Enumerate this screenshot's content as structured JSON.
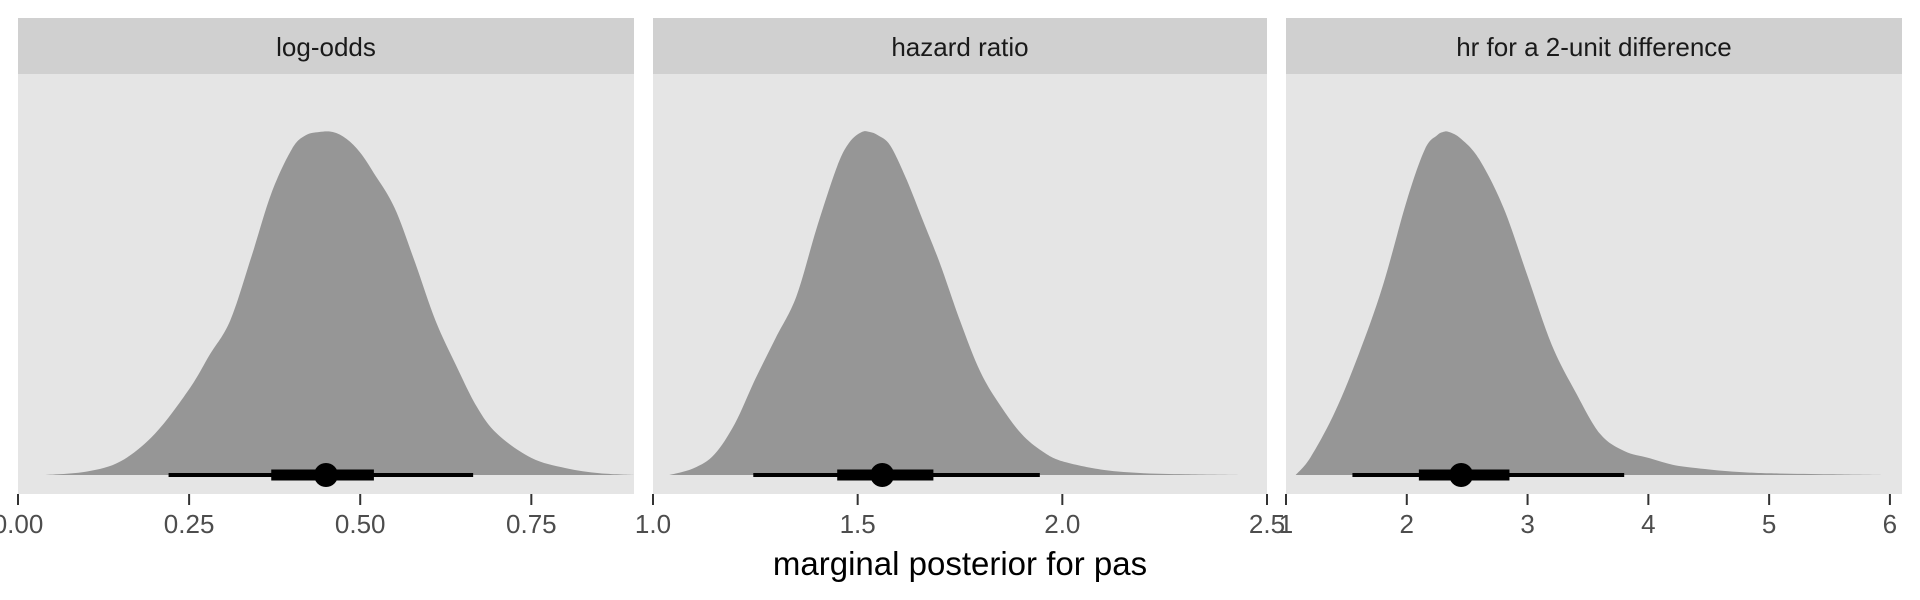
{
  "xlabel": "marginal posterior for pas",
  "colors": {
    "panel_background": "#e5e5e5",
    "strip_background": "#d0d0d0",
    "density_fill": "#969696",
    "interval": "#000000",
    "tick_text": "#4d4d4d"
  },
  "chart_data": [
    {
      "type": "area",
      "title": "log-odds",
      "xlim": [
        0.0,
        0.9
      ],
      "ticks": [
        0.0,
        0.25,
        0.5,
        0.75
      ],
      "tick_labels": [
        "0.00",
        "0.25",
        "0.50",
        "0.75"
      ],
      "density": {
        "x": [
          0.04,
          0.1,
          0.15,
          0.2,
          0.25,
          0.28,
          0.31,
          0.34,
          0.37,
          0.4,
          0.42,
          0.44,
          0.46,
          0.48,
          0.5,
          0.52,
          0.55,
          0.58,
          0.61,
          0.64,
          0.67,
          0.7,
          0.75,
          0.8,
          0.85,
          0.9
        ],
        "y": [
          0.0,
          0.01,
          0.04,
          0.12,
          0.25,
          0.35,
          0.45,
          0.63,
          0.82,
          0.95,
          0.99,
          1.0,
          1.0,
          0.98,
          0.94,
          0.88,
          0.78,
          0.62,
          0.45,
          0.32,
          0.2,
          0.12,
          0.05,
          0.02,
          0.005,
          0.0
        ]
      },
      "interval": {
        "point": 0.45,
        "inner": [
          0.37,
          0.52
        ],
        "outer": [
          0.22,
          0.665
        ]
      }
    },
    {
      "type": "area",
      "title": "hazard ratio",
      "xlim": [
        1.0,
        2.5
      ],
      "ticks": [
        1.0,
        1.5,
        2.0,
        2.5
      ],
      "tick_labels": [
        "1.0",
        "1.5",
        "2.0",
        "2.5"
      ],
      "density": {
        "x": [
          1.04,
          1.1,
          1.15,
          1.2,
          1.25,
          1.3,
          1.35,
          1.4,
          1.45,
          1.48,
          1.51,
          1.53,
          1.55,
          1.58,
          1.62,
          1.66,
          1.7,
          1.75,
          1.8,
          1.85,
          1.9,
          1.95,
          2.0,
          2.1,
          2.2,
          2.3,
          2.43
        ],
        "y": [
          0.0,
          0.02,
          0.06,
          0.15,
          0.28,
          0.4,
          0.52,
          0.72,
          0.9,
          0.97,
          1.0,
          1.0,
          0.99,
          0.96,
          0.86,
          0.74,
          0.62,
          0.45,
          0.3,
          0.2,
          0.12,
          0.07,
          0.04,
          0.015,
          0.005,
          0.002,
          0.0
        ]
      },
      "interval": {
        "point": 1.56,
        "inner": [
          1.45,
          1.685
        ],
        "outer": [
          1.245,
          1.945
        ]
      }
    },
    {
      "type": "area",
      "title": "hr for a 2-unit difference",
      "xlim": [
        1.0,
        6.1
      ],
      "ticks": [
        1,
        2,
        3,
        4,
        5,
        6
      ],
      "tick_labels": [
        "1",
        "2",
        "3",
        "4",
        "5",
        "6"
      ],
      "density": {
        "x": [
          1.08,
          1.2,
          1.4,
          1.6,
          1.8,
          2.0,
          2.15,
          2.25,
          2.3,
          2.35,
          2.45,
          2.6,
          2.8,
          3.0,
          3.2,
          3.4,
          3.6,
          3.8,
          4.0,
          4.2,
          4.4,
          4.7,
          5.0,
          5.5,
          5.93
        ],
        "y": [
          0.0,
          0.05,
          0.18,
          0.35,
          0.55,
          0.8,
          0.95,
          0.99,
          1.0,
          1.0,
          0.98,
          0.92,
          0.78,
          0.58,
          0.38,
          0.24,
          0.12,
          0.07,
          0.05,
          0.03,
          0.02,
          0.01,
          0.005,
          0.002,
          0.0
        ]
      },
      "interval": {
        "point": 2.45,
        "inner": [
          2.1,
          2.85
        ],
        "outer": [
          1.55,
          3.8
        ]
      }
    }
  ]
}
